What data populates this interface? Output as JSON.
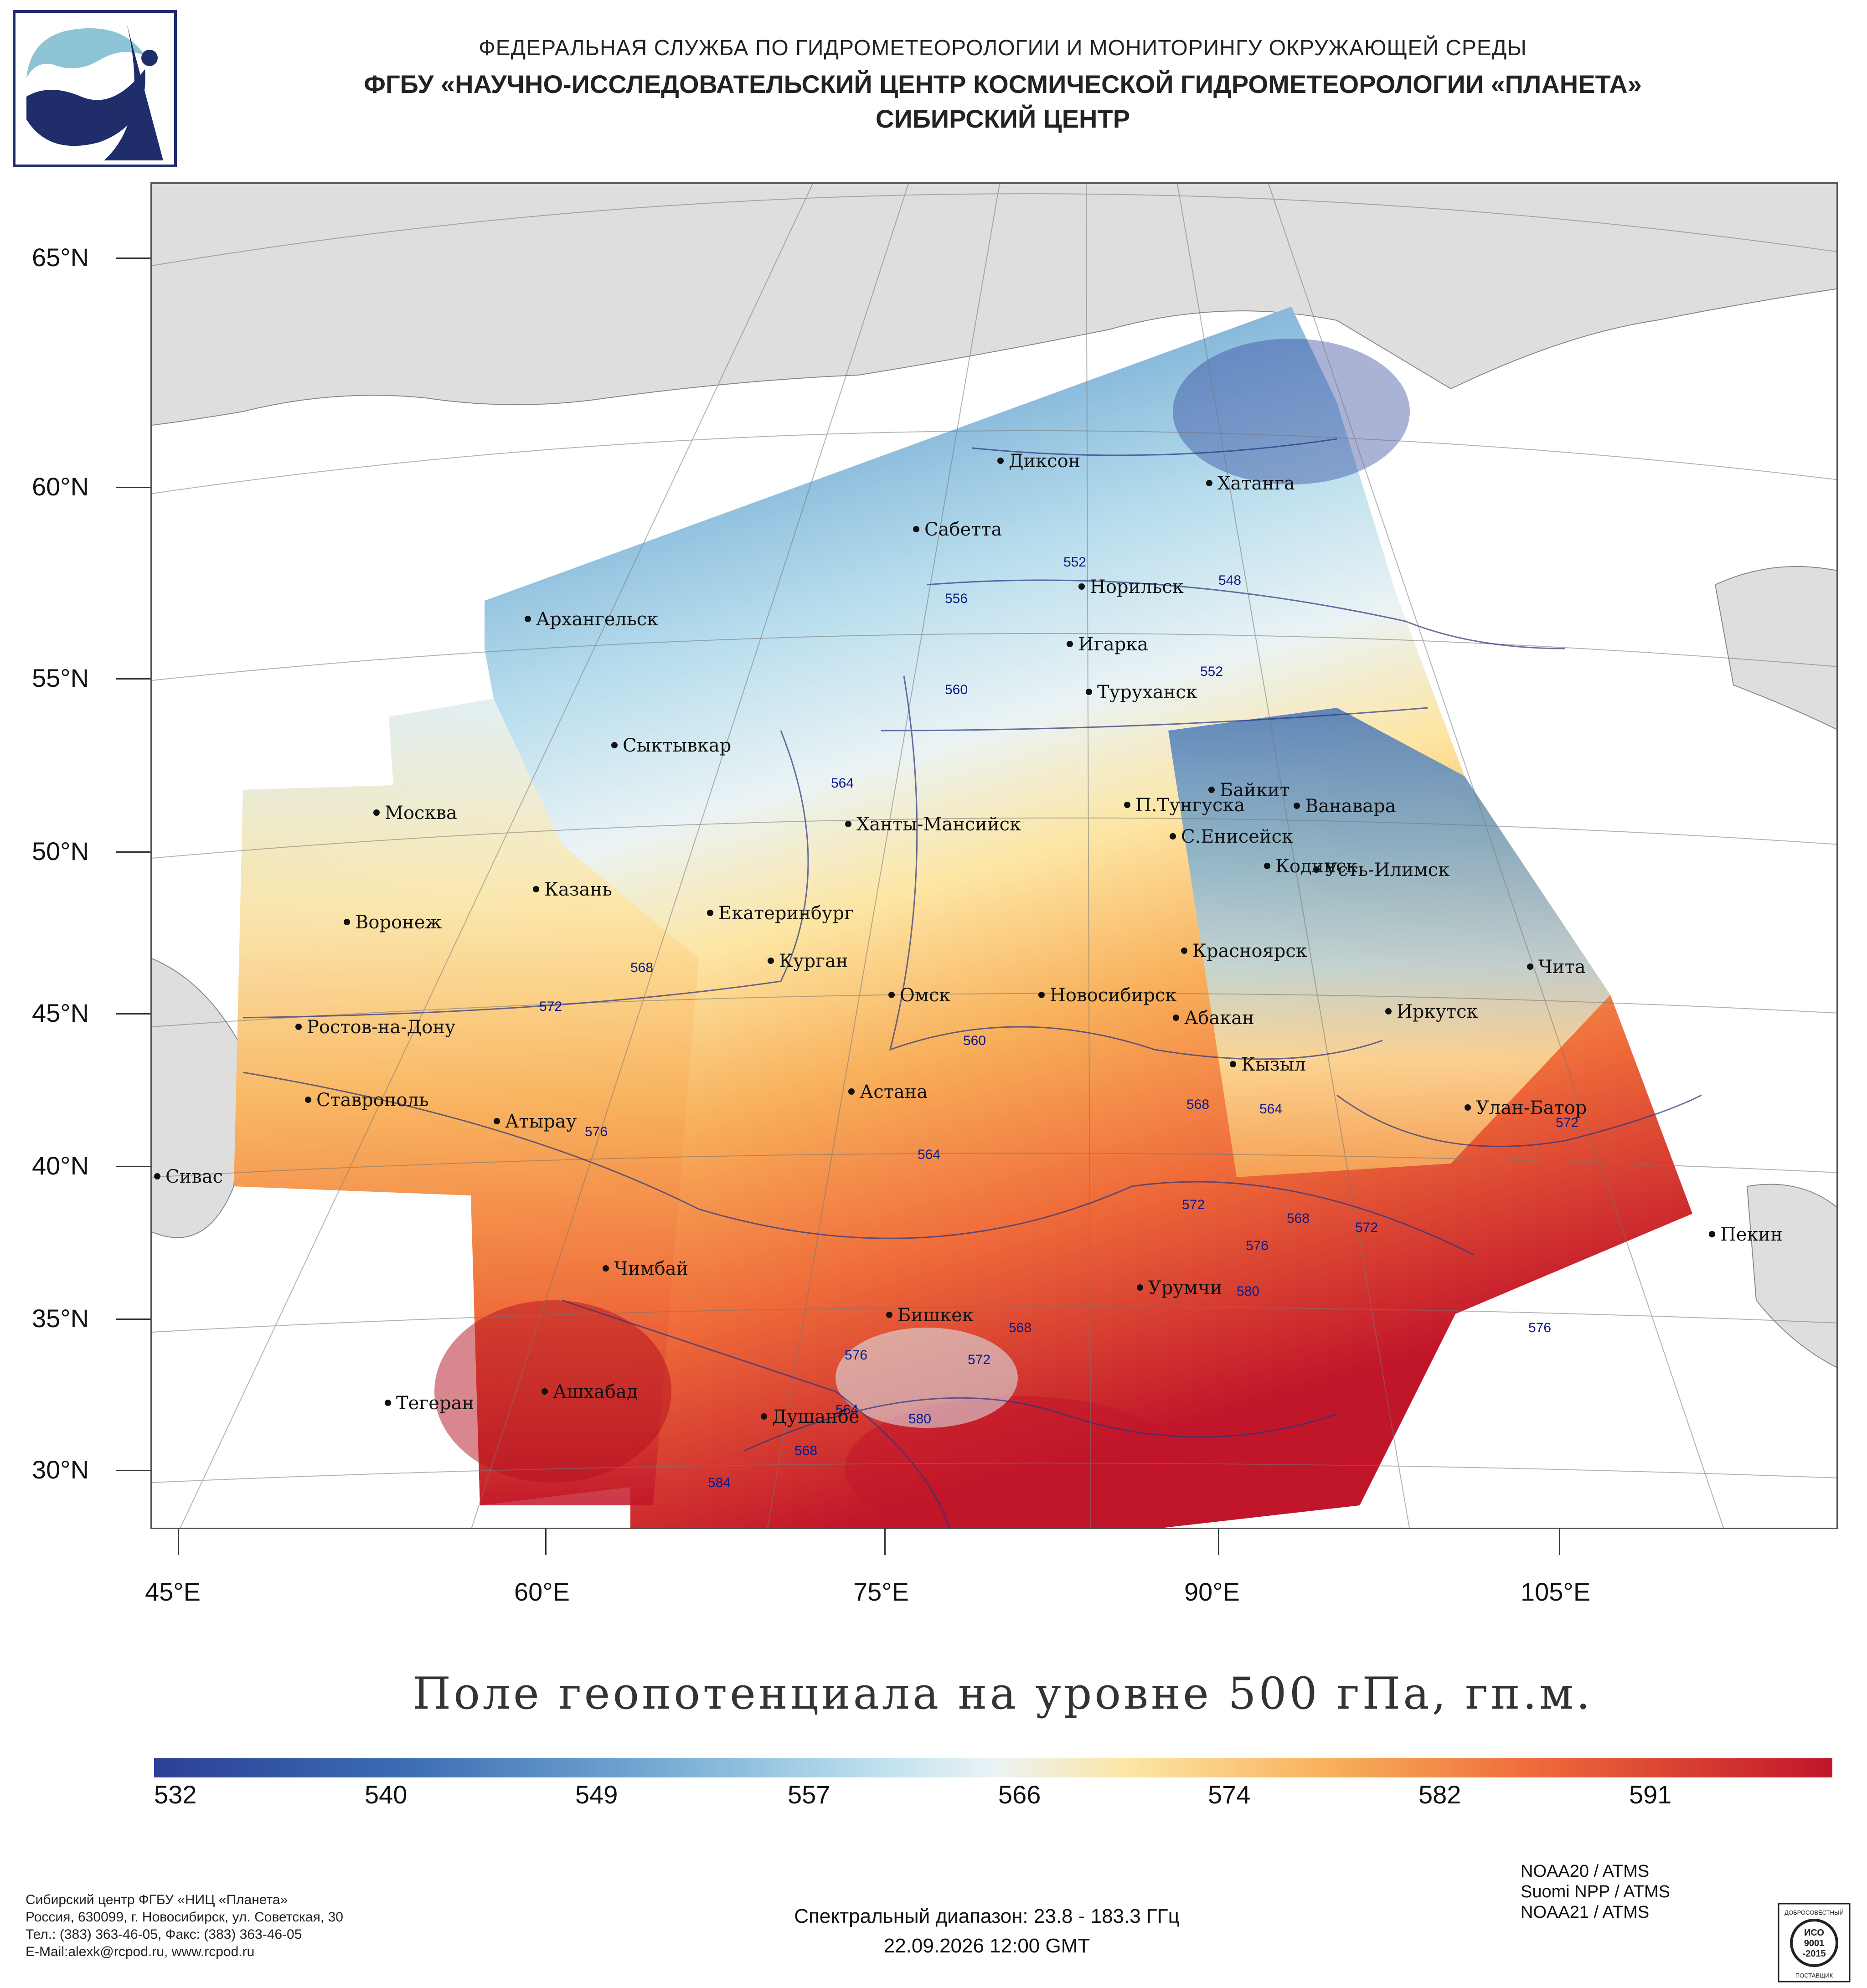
{
  "header": {
    "line1": "ФЕДЕРАЛЬНАЯ СЛУЖБА ПО ГИДРОМЕТЕОРОЛОГИИ И МОНИТОРИНГУ ОКРУЖАЮЩЕЙ СРЕДЫ",
    "line2": "ФГБУ «НАУЧНО-ИССЛЕДОВАТЕЛЬСКИЙ ЦЕНТР КОСМИЧЕСКОЙ ГИДРОМЕТЕОРОЛОГИИ «ПЛАНЕТА»",
    "line3": "СИБИРСКИЙ ЦЕНТР"
  },
  "logo": {
    "icon": "planeta-logo-icon",
    "colors": [
      "#1f2d6b",
      "#8ec5d6"
    ]
  },
  "axes": {
    "lat_labels": [
      "65°N",
      "60°N",
      "55°N",
      "50°N",
      "45°N",
      "40°N",
      "35°N",
      "30°N"
    ],
    "lon_labels": [
      "45°E",
      "60°E",
      "75°E",
      "90°E",
      "105°E"
    ]
  },
  "cities": [
    "Диксон",
    "Хатанга",
    "Сабетта",
    "Норильск",
    "Архангельск",
    "Игарка",
    "Туруханск",
    "Сыктывкар",
    "Байкит",
    "П.Тунгуска",
    "Ванавара",
    "Москва",
    "Ханты-Мансийск",
    "С.Енисейск",
    "Кодинск",
    "Усть-Илимск",
    "Казань",
    "Екатеринбург",
    "Воронеж",
    "Красноярск",
    "Курган",
    "Чита",
    "Омск",
    "Новосибирск",
    "Иркутск",
    "Ростов-на-Дону",
    "Абакан",
    "Кызыл",
    "Астана",
    "Ставрополь",
    "Улан-Батор",
    "Атырау",
    "Сивас",
    "Пекин",
    "Чимбай",
    "Урумчи",
    "Бишкек",
    "Ашхабад",
    "Тегеран",
    "Душанбе"
  ],
  "isoline_labels": [
    "552",
    "556",
    "548",
    "552",
    "560",
    "564",
    "568",
    "572",
    "560",
    "576",
    "568",
    "564",
    "564",
    "572",
    "568",
    "576",
    "572",
    "572",
    "580",
    "576",
    "568",
    "576",
    "572",
    "564",
    "580",
    "568",
    "584"
  ],
  "map_title": "Поле геопотенциала на уровне 500 гПа, гп.м.",
  "colorbar": {
    "labels": [
      "532",
      "540",
      "549",
      "557",
      "566",
      "574",
      "582",
      "591"
    ],
    "colors": [
      "#2b3f98",
      "#3c6db4",
      "#74aad3",
      "#b7dded",
      "#eaf3f5",
      "#fde6a4",
      "#f8b05b",
      "#ef6c3a",
      "#c1152a"
    ]
  },
  "footer": {
    "org": "Сибирский центр ФГБУ «НИЦ «Планета»",
    "address": "Россия, 630099, г. Новосибирск, ул. Советская, 30",
    "phone": "Тел.: (383) 363-46-05, Факс: (383) 363-46-05",
    "email": "E-Mail:alexk@rcpod.ru, www.rcpod.ru",
    "spectral": "Спектральный диапазон: 23.8 - 183.3 ГГц",
    "datetime": "22.09.2026 12:00 GMT",
    "satellites": [
      "NOAA20 / ATMS",
      "Suomi NPP / ATMS",
      "NOAA21 / ATMS"
    ]
  },
  "badge": {
    "icon": "iso-badge-icon",
    "top": "ДОБРОСОВЕСТНЫЙ",
    "line1": "ИСО",
    "line2": "9001",
    "line3": "-2015",
    "bottom": "ПОСТАВЩИК"
  }
}
